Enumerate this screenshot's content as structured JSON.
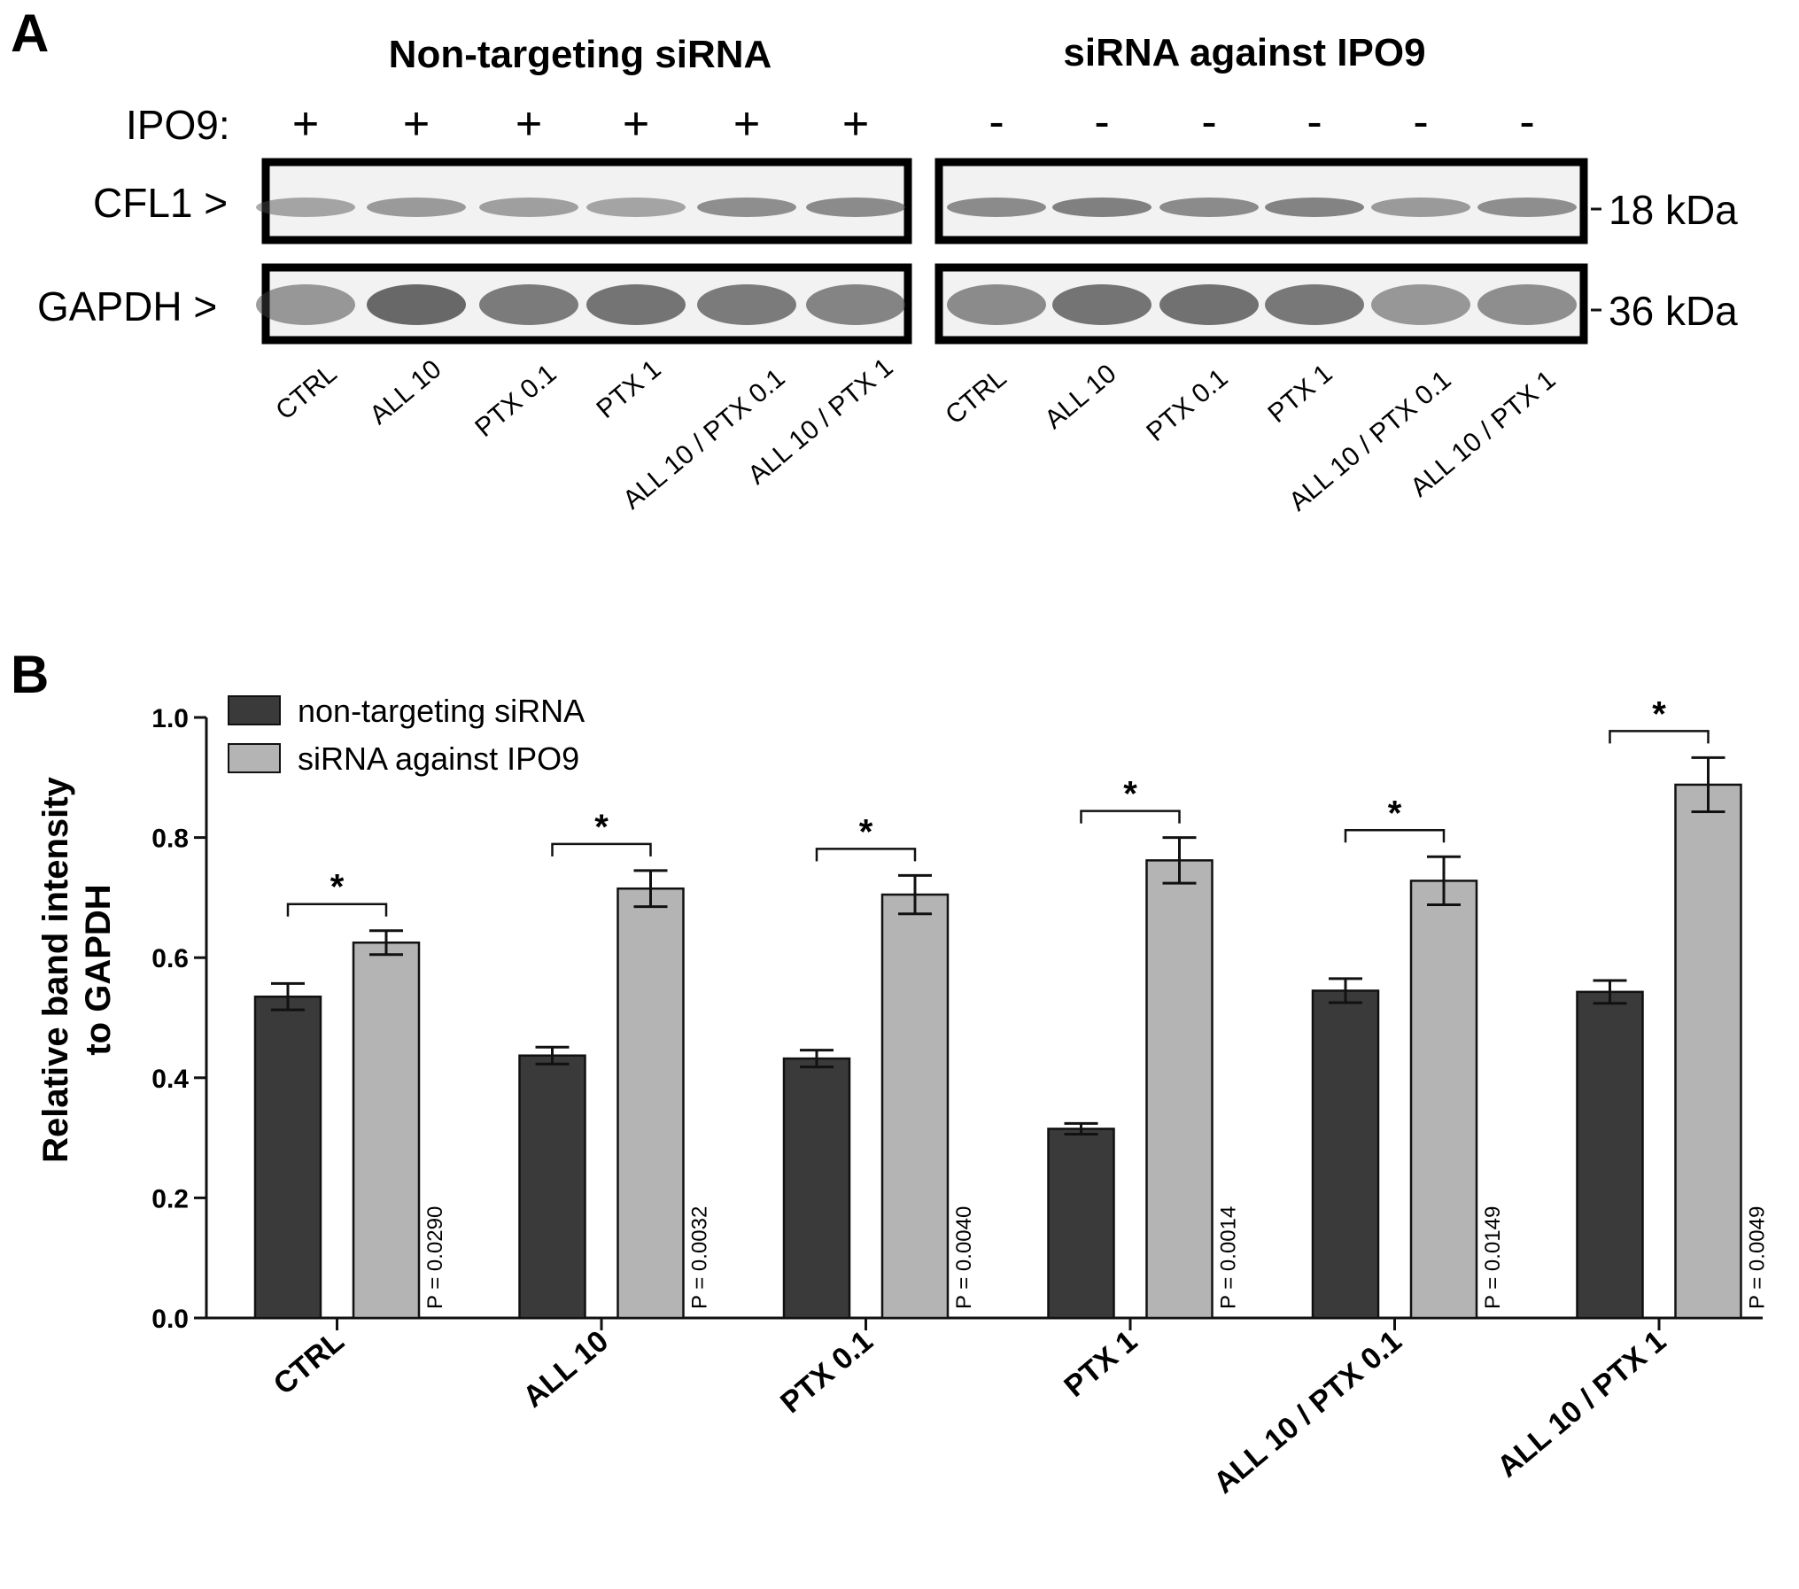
{
  "panel_a": {
    "letter": "A",
    "groups": [
      {
        "title": "Non-targeting siRNA",
        "ipo9_signs": [
          "+",
          "+",
          "+",
          "+",
          "+",
          "+"
        ]
      },
      {
        "title": "siRNA against IPO9",
        "ipo9_signs": [
          "-",
          "-",
          "-",
          "-",
          "-",
          "-"
        ]
      }
    ],
    "ipo9_label": "IPO9:",
    "rows": [
      {
        "label": "CFL1 >",
        "size": "18 kDa"
      },
      {
        "label": "GAPDH >",
        "size": "36 kDa"
      }
    ],
    "lane_labels": [
      "CTRL",
      "ALL 10",
      "PTX 0.1",
      "PTX 1",
      "ALL 10 / PTX 0.1",
      "ALL 10 / PTX 1"
    ]
  },
  "panel_b": {
    "letter": "B"
  },
  "chart_data": {
    "type": "bar",
    "ylabel_lines": [
      "Relative band intensity",
      "to GAPDH"
    ],
    "categories": [
      "CTRL",
      "ALL 10",
      "PTX 0.1",
      "PTX 1",
      "ALL 10 / PTX 0.1",
      "ALL 10 / PTX 1"
    ],
    "ylim": [
      0,
      1.0
    ],
    "yticks": [
      "0.0",
      "0.2",
      "0.4",
      "0.6",
      "0.8",
      "1.0"
    ],
    "series": [
      {
        "name": "non-targeting siRNA",
        "color": "#3a3a3a",
        "values": [
          0.535,
          0.437,
          0.432,
          0.315,
          0.545,
          0.543
        ],
        "errors": [
          0.022,
          0.014,
          0.014,
          0.009,
          0.02,
          0.019
        ]
      },
      {
        "name": "siRNA against IPO9",
        "color": "#b4b4b4",
        "values": [
          0.625,
          0.715,
          0.705,
          0.762,
          0.728,
          0.888
        ],
        "errors": [
          0.02,
          0.03,
          0.032,
          0.038,
          0.04,
          0.045
        ]
      }
    ],
    "significance": [
      "*",
      "*",
      "*",
      "*",
      "*",
      "*"
    ],
    "p_values": [
      "P = 0.0290",
      "P = 0.0032",
      "P = 0.0040",
      "P = 0.0014",
      "P = 0.0149",
      "P = 0.0049"
    ],
    "legend_position": "top-left",
    "grid": false
  }
}
